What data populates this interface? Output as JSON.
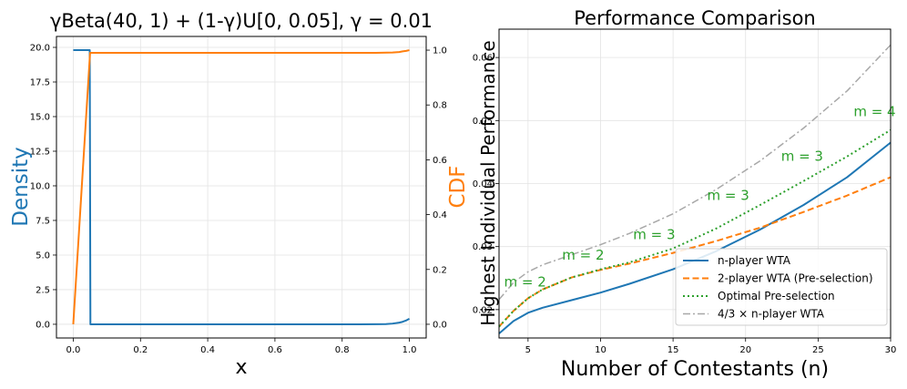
{
  "colors": {
    "blue": "#1f77b4",
    "orange": "#ff7f0e",
    "green": "#2ca02c",
    "gray": "#a8a8a8",
    "grid": "#e3e3e3"
  },
  "chart_data": [
    {
      "type": "line",
      "title": "γBeta(40, 1) + (1-γ)U[0, 0.05], γ = 0.01",
      "xlabel": "x",
      "ylabel": "Density",
      "y2label": "CDF",
      "xlim": [
        -0.05,
        1.05
      ],
      "ylim": [
        -0.99,
        20.79
      ],
      "y2lim": [
        -0.05,
        1.05
      ],
      "grid": true,
      "xticks": [
        0.0,
        0.2,
        0.4,
        0.6,
        0.8,
        1.0
      ],
      "xtick_labels": [
        "0.0",
        "0.2",
        "0.4",
        "0.6",
        "0.8",
        "1.0"
      ],
      "yticks": [
        0.0,
        2.5,
        5.0,
        7.5,
        10.0,
        12.5,
        15.0,
        17.5,
        20.0
      ],
      "ytick_labels": [
        "0.0",
        "2.5",
        "5.0",
        "7.5",
        "10.0",
        "12.5",
        "15.0",
        "17.5",
        "20.0"
      ],
      "y2ticks": [
        0.0,
        0.2,
        0.4,
        0.6,
        0.8,
        1.0
      ],
      "y2tick_labels": [
        "0.0",
        "0.2",
        "0.4",
        "0.6",
        "0.8",
        "1.0"
      ],
      "series": [
        {
          "name": "Density",
          "axis": "left",
          "x": [
            0.0,
            0.049,
            0.051,
            0.3,
            0.6,
            0.85,
            0.9,
            0.93,
            0.95,
            0.97,
            0.98,
            0.99,
            1.0
          ],
          "y": [
            19.8,
            19.8,
            0.0,
            0.0,
            0.0,
            0.0,
            0.002,
            0.01,
            0.05,
            0.12,
            0.18,
            0.27,
            0.4
          ]
        },
        {
          "name": "CDF",
          "axis": "right",
          "x": [
            0.0,
            0.05,
            0.5,
            0.9,
            0.95,
            0.97,
            0.98,
            0.99,
            1.0
          ],
          "y": [
            0.0,
            0.99,
            0.99,
            0.99,
            0.9913,
            0.9932,
            0.9955,
            0.9972,
            1.0
          ]
        }
      ]
    },
    {
      "type": "line",
      "title": "Performance Comparison",
      "xlabel": "Number of Contestants (n)",
      "ylabel": "Highest Individual Performance",
      "xlim": [
        3,
        30
      ],
      "ylim": [
        0.0155,
        0.0645
      ],
      "grid": true,
      "legend": "lower-right",
      "xticks": [
        5,
        10,
        15,
        20,
        25,
        30
      ],
      "xtick_labels": [
        "5",
        "10",
        "15",
        "20",
        "25",
        "30"
      ],
      "yticks": [
        0.02,
        0.03,
        0.04,
        0.05,
        0.06
      ],
      "ytick_labels": [
        "0.02",
        "0.03",
        "0.04",
        "0.05",
        "0.06"
      ],
      "series": [
        {
          "name": "n-player WTA",
          "style": "solid",
          "x": [
            3,
            4,
            5,
            6,
            8,
            10,
            12,
            15,
            18,
            21,
            24,
            27,
            30
          ],
          "y": [
            0.0162,
            0.0182,
            0.0195,
            0.0203,
            0.0215,
            0.0227,
            0.0241,
            0.0264,
            0.0293,
            0.0327,
            0.0366,
            0.041,
            0.0465
          ]
        },
        {
          "name": "2-player WTA (Pre-selection)",
          "style": "dashed",
          "x": [
            3,
            4,
            5,
            6,
            8,
            10,
            12,
            15,
            18,
            21,
            24,
            27,
            30
          ],
          "y": [
            0.0173,
            0.0198,
            0.0218,
            0.0232,
            0.0251,
            0.0263,
            0.0273,
            0.029,
            0.0309,
            0.033,
            0.0355,
            0.0381,
            0.041
          ]
        },
        {
          "name": "Optimal Pre-selection",
          "style": "dotted",
          "x": [
            3,
            4,
            5,
            6,
            8,
            10,
            12,
            15,
            18,
            21,
            24,
            27,
            30
          ],
          "y": [
            0.0173,
            0.0198,
            0.0218,
            0.0232,
            0.0251,
            0.0264,
            0.0275,
            0.0297,
            0.0329,
            0.0366,
            0.0404,
            0.0443,
            0.0485
          ]
        },
        {
          "name": "4/3 × n-player WTA",
          "style": "dashdot",
          "x": [
            3,
            4,
            5,
            6,
            8,
            10,
            12,
            15,
            18,
            21,
            24,
            27,
            30
          ],
          "y": [
            0.0216,
            0.0243,
            0.026,
            0.0271,
            0.0287,
            0.0303,
            0.0321,
            0.0352,
            0.0391,
            0.0436,
            0.0488,
            0.0547,
            0.062
          ]
        }
      ],
      "annotations": [
        {
          "text": "m = 2",
          "x": 4.8,
          "y": 0.0237
        },
        {
          "text": "m = 2",
          "x": 8.8,
          "y": 0.0279
        },
        {
          "text": "m = 3",
          "x": 13.7,
          "y": 0.0312
        },
        {
          "text": "m = 3",
          "x": 18.8,
          "y": 0.0374
        },
        {
          "text": "m = 3",
          "x": 23.9,
          "y": 0.0436
        },
        {
          "text": "m = 4",
          "x": 28.9,
          "y": 0.0507
        }
      ]
    }
  ]
}
